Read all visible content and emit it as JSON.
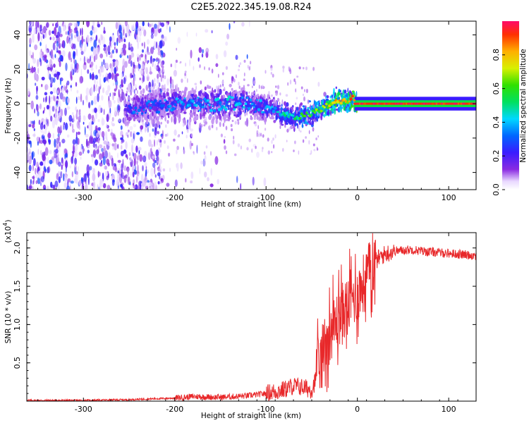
{
  "title": "C2E5.2022.345.19.08.R24",
  "chart_data": [
    {
      "type": "heatmap",
      "title": "C2E5.2022.345.19.08.R24",
      "xlabel": "Height of straight line (km)",
      "ylabel": "Frequency (Hz)",
      "xlim": [
        -362,
        130
      ],
      "ylim": [
        -50,
        48
      ],
      "x_ticks": [
        -300,
        -200,
        -100,
        0,
        100
      ],
      "x_tick_labels": [
        "-300",
        "-200",
        "-100",
        "0",
        "100"
      ],
      "y_ticks": [
        -40,
        -20,
        0,
        20,
        40
      ],
      "y_tick_labels": [
        "-40",
        "-20",
        "0",
        "20",
        "40"
      ],
      "colorbar": {
        "label": "Normalized spectral amplitude",
        "range": [
          0,
          1
        ],
        "ticks": [
          0.0,
          0.2,
          0.4,
          0.6,
          0.8
        ],
        "tick_labels": [
          "0.0",
          "0.2",
          "0.4",
          "0.6",
          "0.8"
        ],
        "colormap": "rainbow (violet to red)"
      },
      "frequency_track": {
        "x": [
          -250,
          -200,
          -150,
          -120,
          -100,
          -80,
          -70,
          -60,
          -50,
          -40,
          -30,
          -20,
          -10,
          -5,
          0,
          20,
          50,
          100,
          130
        ],
        "y": [
          -3,
          0,
          0,
          0,
          -2,
          -6,
          -8,
          -7,
          -6,
          -3,
          0,
          2,
          1,
          3,
          0,
          0,
          0,
          0,
          0
        ],
        "amplitude": [
          0.3,
          0.35,
          0.4,
          0.4,
          0.35,
          0.45,
          0.5,
          0.55,
          0.6,
          0.65,
          0.7,
          0.8,
          0.75,
          0.9,
          0.95,
          0.95,
          0.95,
          0.95,
          0.95
        ]
      }
    },
    {
      "type": "line",
      "xlabel": "Height of straight line (km)",
      "ylabel": "SNR (10 * v/v)",
      "y_multiplier": "(x10^4)",
      "y_multiplier_base": "(x10",
      "y_multiplier_exp": "4",
      "y_multiplier_close": ")",
      "xlim": [
        -362,
        130
      ],
      "ylim": [
        0,
        2.2
      ],
      "x_ticks": [
        -300,
        -200,
        -100,
        0,
        100
      ],
      "x_tick_labels": [
        "-300",
        "-200",
        "-100",
        "0",
        "100"
      ],
      "y_ticks": [
        0.5,
        1.0,
        1.5,
        2.0
      ],
      "y_tick_labels": [
        "0.5",
        "1.0",
        "1.5",
        "2.0"
      ],
      "color": "#e8282a",
      "series": [
        {
          "name": "SNR",
          "x": [
            -362,
            -300,
            -250,
            -200,
            -180,
            -150,
            -120,
            -100,
            -80,
            -70,
            -60,
            -50,
            -45,
            -40,
            -35,
            -30,
            -25,
            -20,
            -15,
            -10,
            -5,
            0,
            5,
            10,
            15,
            20,
            25,
            30,
            40,
            50,
            60,
            70,
            80,
            90,
            100,
            110,
            120,
            130
          ],
          "y": [
            0.01,
            0.01,
            0.02,
            0.04,
            0.06,
            0.05,
            0.07,
            0.1,
            0.15,
            0.2,
            0.18,
            0.15,
            0.3,
            0.55,
            0.8,
            0.9,
            1.0,
            1.1,
            1.2,
            1.25,
            1.35,
            1.4,
            1.5,
            1.65,
            1.75,
            1.83,
            1.88,
            1.92,
            1.96,
            1.97,
            1.98,
            1.96,
            1.95,
            1.94,
            1.93,
            1.92,
            1.91,
            1.9
          ]
        }
      ]
    }
  ]
}
